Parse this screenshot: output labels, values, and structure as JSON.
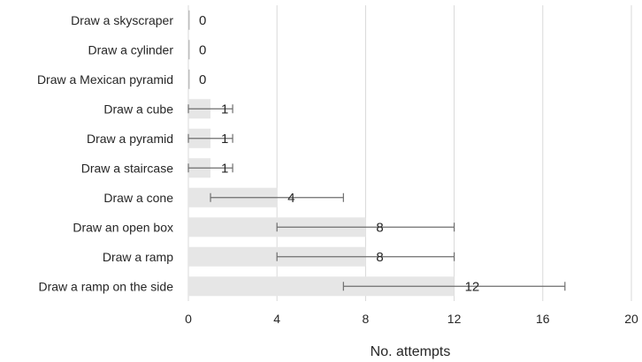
{
  "chart_data": {
    "type": "bar",
    "orientation": "horizontal",
    "categories": [
      "Draw a skyscraper",
      "Draw a cylinder",
      "Draw a Mexican pyramid",
      "Draw a cube",
      "Draw a pyramid",
      "Draw a staircase",
      "Draw a cone",
      "Draw an open box",
      "Draw a ramp",
      "Draw a ramp on the side"
    ],
    "values": [
      0,
      0,
      0,
      1,
      1,
      1,
      4,
      8,
      8,
      12
    ],
    "data_labels": [
      "0",
      "0",
      "0",
      "1",
      "1",
      "1",
      "4",
      "8",
      "8",
      "12"
    ],
    "error_bars": [
      [
        0,
        0
      ],
      [
        0,
        0
      ],
      [
        0,
        0
      ],
      [
        0,
        2
      ],
      [
        0,
        2
      ],
      [
        0,
        2
      ],
      [
        1,
        7
      ],
      [
        4,
        12
      ],
      [
        4,
        12
      ],
      [
        7,
        17
      ]
    ],
    "xlabel": "No. attempts",
    "ylabel": "",
    "xlim": [
      0,
      20
    ],
    "xticks": [
      0,
      4,
      8,
      12,
      16,
      20
    ],
    "xtick_labels": [
      "0",
      "4",
      "8",
      "12",
      "16",
      "20"
    ],
    "grid": true,
    "colors": {
      "bar": "#e6e6e6",
      "error_bar": "#6e6e6e",
      "grid": "#d9d9d9",
      "text": "#262626"
    }
  }
}
